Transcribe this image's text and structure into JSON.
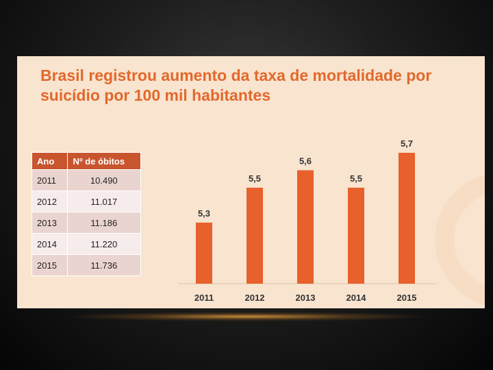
{
  "slide": {
    "title": "Brasil registrou aumento da taxa de mortalidade por suicídio por 100 mil habitantes"
  },
  "table": {
    "headers": [
      "Ano",
      "Nº de óbitos"
    ],
    "rows": [
      [
        "2011",
        "10.490"
      ],
      [
        "2012",
        "11.017"
      ],
      [
        "2013",
        "11.186"
      ],
      [
        "2014",
        "11.220"
      ],
      [
        "2015",
        "11.736"
      ]
    ]
  },
  "colors": {
    "bar": "#e8602c",
    "title": "#e2682c",
    "table_header": "#c9552e",
    "background": "#f8e4cf"
  },
  "chart_data": {
    "type": "bar",
    "title": "",
    "xlabel": "",
    "ylabel": "",
    "categories": [
      "2011",
      "2012",
      "2013",
      "2014",
      "2015"
    ],
    "values": [
      5.3,
      5.5,
      5.6,
      5.5,
      5.7
    ],
    "value_labels": [
      "5,3",
      "5,5",
      "5,6",
      "5,5",
      "5,7"
    ],
    "ylim": [
      4.95,
      5.7
    ],
    "grid": false,
    "legend": "none"
  }
}
